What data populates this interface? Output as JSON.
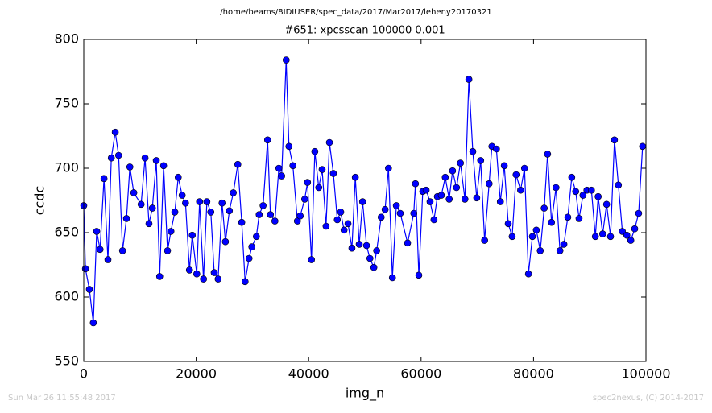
{
  "chart_data": {
    "type": "line",
    "suptitle": "/home/beams/8IDIUSER/spec_data/2017/Mar2017/leheny20170321",
    "title": "#651: xpcsscan 100000 0.001",
    "x_label": "img_n",
    "y_label": "ccdc",
    "footer_left": "Sun Mar 26 11:55:48 2017",
    "footer_right": "spec2nexus, (C) 2014-2017",
    "xlim": [
      0,
      100000
    ],
    "ylim": [
      550,
      800
    ],
    "xticks": [
      0,
      20000,
      40000,
      60000,
      80000,
      100000
    ],
    "yticks": [
      550,
      600,
      650,
      700,
      750,
      800
    ],
    "grid": false,
    "x": [
      0,
      300,
      1000,
      1700,
      2300,
      2900,
      3600,
      4300,
      4900,
      5600,
      6200,
      6900,
      7600,
      8200,
      8900,
      10200,
      10900,
      11600,
      12200,
      12900,
      13500,
      14200,
      14900,
      15500,
      16200,
      16800,
      17500,
      18100,
      18800,
      19300,
      20100,
      20600,
      21300,
      21900,
      22600,
      23200,
      23900,
      24600,
      25200,
      25900,
      26600,
      27400,
      28100,
      28700,
      29400,
      29900,
      30700,
      31200,
      31900,
      32700,
      33200,
      34000,
      34700,
      35200,
      36000,
      36500,
      37200,
      38000,
      38500,
      39300,
      39800,
      40500,
      41100,
      41800,
      42400,
      43100,
      43700,
      44400,
      45100,
      45700,
      46300,
      47000,
      47700,
      48300,
      49000,
      49600,
      50300,
      50900,
      51600,
      52100,
      52900,
      53600,
      54200,
      54900,
      55600,
      56300,
      57600,
      58700,
      59000,
      59600,
      60300,
      60900,
      61600,
      62300,
      62900,
      63600,
      64300,
      65000,
      65600,
      66300,
      67000,
      67800,
      68500,
      69200,
      69900,
      70600,
      71300,
      72100,
      72600,
      73400,
      74100,
      74800,
      75500,
      76200,
      76900,
      77700,
      78400,
      79100,
      79800,
      80500,
      81200,
      81900,
      82500,
      83200,
      84000,
      84700,
      85400,
      86100,
      86800,
      87500,
      88100,
      88800,
      89500,
      90300,
      91000,
      91500,
      92300,
      93000,
      93700,
      94400,
      95100,
      95800,
      96600,
      97300,
      98000,
      98700,
      99400
    ],
    "series": [
      {
        "name": "ccdc",
        "color": "#0000ff",
        "values": [
          671,
          622,
          606,
          580,
          651,
          637,
          692,
          629,
          708,
          728,
          710,
          636,
          661,
          701,
          681,
          672,
          708,
          657,
          669,
          706,
          616,
          702,
          636,
          651,
          666,
          693,
          679,
          673,
          621,
          648,
          618,
          674,
          614,
          674,
          666,
          619,
          614,
          673,
          643,
          667,
          681,
          703,
          658,
          612,
          630,
          639,
          647,
          664,
          671,
          722,
          664,
          659,
          700,
          694,
          784,
          717,
          702,
          659,
          663,
          676,
          689,
          629,
          713,
          685,
          699,
          655,
          720,
          696,
          660,
          666,
          652,
          657,
          638,
          693,
          641,
          674,
          640,
          630,
          623,
          636,
          662,
          668,
          700,
          615,
          671,
          665,
          642,
          665,
          688,
          617,
          682,
          683,
          674,
          660,
          678,
          679,
          693,
          676,
          698,
          685,
          704,
          676,
          769,
          713,
          677,
          706,
          644,
          688,
          717,
          715,
          674,
          702,
          657,
          647,
          695,
          683,
          700,
          618,
          647,
          652,
          636,
          669,
          711,
          658,
          685,
          636,
          641,
          662,
          693,
          682,
          661,
          679,
          683,
          683,
          647,
          678,
          649,
          672,
          647,
          722,
          687,
          651,
          648,
          644,
          653,
          665,
          717
        ]
      }
    ]
  }
}
